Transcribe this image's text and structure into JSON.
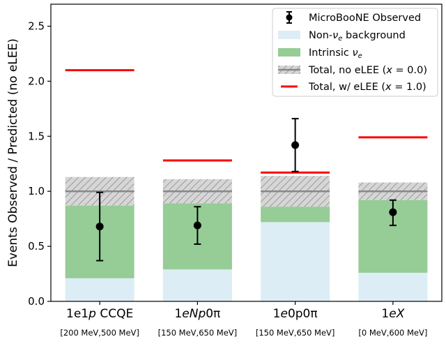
{
  "chart_data": {
    "type": "bar",
    "ylabel": "Events Observed / Predicted (no eLEE)",
    "ylim": [
      0,
      2.7
    ],
    "yticks": [
      "0.0",
      "0.5",
      "1.0",
      "1.5",
      "2.0",
      "2.5"
    ],
    "categories": [
      {
        "name": "1e1p CCQE",
        "main": "1e1",
        "italic": "p",
        "suffix": " CCQE",
        "range": "[200 MeV,500 MeV]"
      },
      {
        "name": "1eNp0π",
        "main": "1",
        "italic": "eNp",
        "suffix": "0π",
        "range": "[150 MeV,650 MeV]"
      },
      {
        "name": "1e0p0π",
        "main": "1",
        "italic": "e",
        "suffix": "0p0π",
        "range": "[150 MeV,650 MeV]"
      },
      {
        "name": "1eX",
        "main": "1",
        "italic": "eX",
        "suffix": "",
        "range": "[0 MeV,600 MeV]"
      }
    ],
    "series": [
      {
        "name": "Non-νe background",
        "kind": "stack",
        "color": "#dcedf5",
        "values": [
          0.21,
          0.29,
          0.72,
          0.26
        ]
      },
      {
        "name": "Intrinsic νe",
        "kind": "stack",
        "color": "#96cc96",
        "values": [
          0.66,
          0.6,
          0.14,
          0.66
        ]
      },
      {
        "name": "Total, no eLEE (x = 0.0)",
        "kind": "band",
        "color": "#9a9a9a",
        "center": [
          1.0,
          1.0,
          1.0,
          1.0
        ],
        "low": [
          0.87,
          0.89,
          0.86,
          0.92
        ],
        "high": [
          1.13,
          1.11,
          1.14,
          1.08
        ]
      },
      {
        "name": "Total, w/ eLEE (x = 1.0)",
        "kind": "hline",
        "color": "#ff0000",
        "values": [
          2.1,
          1.28,
          1.17,
          1.49
        ]
      },
      {
        "name": "MicroBooNE Observed",
        "kind": "points",
        "color": "#000000",
        "values": [
          0.68,
          0.69,
          1.42,
          0.81
        ],
        "err_low": [
          0.37,
          0.52,
          1.18,
          0.69
        ],
        "err_high": [
          0.99,
          0.86,
          1.66,
          0.92
        ]
      }
    ],
    "legend": {
      "placement": "top-right",
      "entries": [
        {
          "type": "point",
          "label": "MicroBooNE Observed"
        },
        {
          "type": "bg",
          "label_pre": "Non-",
          "label_sym": "ν",
          "label_sub": "e",
          "label_post": " background"
        },
        {
          "type": "intrinsic",
          "label_pre": "Intrinsic ",
          "label_sym": "ν",
          "label_sub": "e",
          "label_post": ""
        },
        {
          "type": "band",
          "label_pre": "Total, no eLEE (",
          "label_sym": "x",
          "label_post": " = 0.0)"
        },
        {
          "type": "hline",
          "label_pre": "Total, w/ eLEE (",
          "label_sym": "x",
          "label_post": " = 1.0)"
        }
      ]
    }
  }
}
